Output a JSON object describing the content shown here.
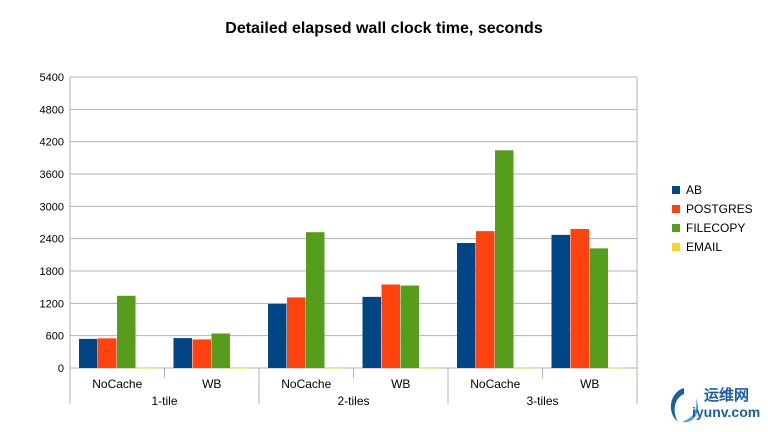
{
  "chart_data": {
    "type": "bar",
    "title": "Detailed elapsed wall clock time, seconds",
    "xlabel": "",
    "ylabel": "",
    "ylim": [
      0,
      5400
    ],
    "yticks": [
      "0",
      "600",
      "1200",
      "1800",
      "2400",
      "3000",
      "3600",
      "4200",
      "4800",
      "5400"
    ],
    "grid": true,
    "legend_position": "right",
    "groups": [
      {
        "label": "1-tile",
        "categories": [
          "NoCache",
          "WB"
        ]
      },
      {
        "label": "2-tiles",
        "categories": [
          "NoCache",
          "WB"
        ]
      },
      {
        "label": "3-tiles",
        "categories": [
          "NoCache",
          "WB"
        ]
      }
    ],
    "categories": [
      "NoCache",
      "WB",
      "NoCache",
      "WB",
      "NoCache",
      "WB"
    ],
    "series": [
      {
        "name": "AB",
        "color": "#004586",
        "values": [
          540,
          555,
          1190,
          1320,
          2320,
          2470
        ]
      },
      {
        "name": "POSTGRES",
        "color": "#ff420e",
        "values": [
          550,
          530,
          1310,
          1550,
          2540,
          2580
        ]
      },
      {
        "name": "FILECOPY",
        "color": "#579d1c",
        "values": [
          1340,
          640,
          2520,
          1530,
          4040,
          2220
        ]
      },
      {
        "name": "EMAIL",
        "color": "#ffd320",
        "values": [
          3,
          3,
          3,
          3,
          5,
          5
        ]
      }
    ]
  },
  "watermark": {
    "text_cn": "运维网",
    "text_url": "iyunv.com"
  }
}
